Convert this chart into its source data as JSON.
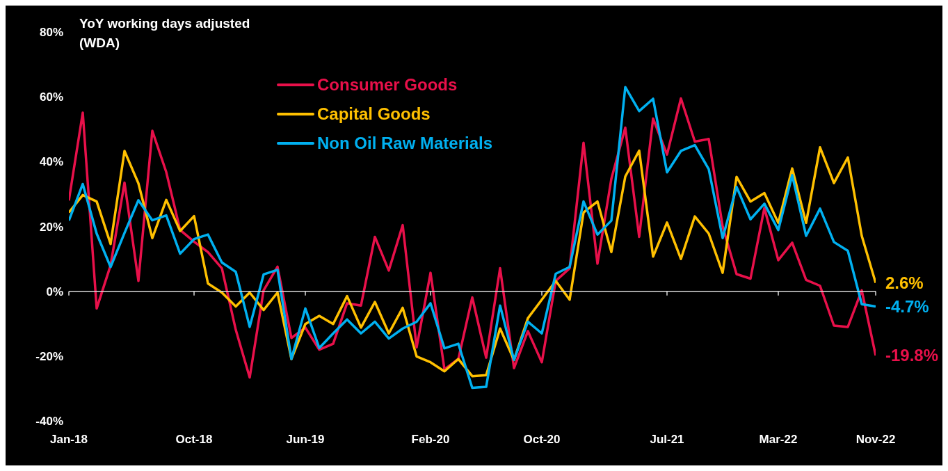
{
  "chart_data": {
    "type": "line",
    "ylabel": "YoY working days adjusted (WDA)",
    "categories": [
      "Jan-18",
      null,
      null,
      null,
      null,
      null,
      null,
      null,
      null,
      "Oct-18",
      null,
      null,
      null,
      null,
      null,
      null,
      null,
      "Jun-19",
      null,
      null,
      null,
      null,
      null,
      null,
      null,
      null,
      "Feb-20",
      null,
      null,
      null,
      null,
      null,
      null,
      null,
      "Oct-20",
      null,
      null,
      null,
      null,
      null,
      null,
      null,
      null,
      "Jul-21",
      null,
      null,
      null,
      null,
      null,
      null,
      null,
      "Mar-22",
      null,
      null,
      null,
      null,
      null,
      null,
      "Nov-22"
    ],
    "ylim": [
      -40,
      80
    ],
    "yticks": [
      {
        "value": -40,
        "label": "-40%"
      },
      {
        "value": -20,
        "label": "-20%"
      },
      {
        "value": 0,
        "label": "0%"
      },
      {
        "value": 20,
        "label": "20%"
      },
      {
        "value": 40,
        "label": "40%"
      },
      {
        "value": 60,
        "label": "60%"
      },
      {
        "value": 80,
        "label": "80%"
      }
    ],
    "legend": "top",
    "marker": "none",
    "line_style": "solid",
    "series": [
      {
        "name": "Consumer Goods",
        "color": "#e8104a",
        "values": [
          28,
          55.1,
          -5.3,
          8,
          33.5,
          3.2,
          49.5,
          36.8,
          18.9,
          15.3,
          12.1,
          7.1,
          -11.9,
          -26.6,
          0.3,
          7.6,
          -14.4,
          -11.2,
          -18,
          -16.2,
          -3.7,
          -4.4,
          16.8,
          6.4,
          20.4,
          -17.3,
          5.7,
          -24.1,
          -20.9,
          -1.9,
          -20.5,
          7.1,
          -23.7,
          -12.3,
          -21.9,
          3.2,
          7.1,
          45.8,
          8.5,
          34.7,
          50.5,
          16.8,
          53.3,
          42.2,
          59.5,
          46.2,
          47,
          20,
          5.3,
          3.9,
          25.7,
          9.6,
          15,
          3.5,
          1.7,
          -10.6,
          -11,
          0.3,
          -19.8
        ],
        "value_labels": [
          null,
          null,
          null,
          null,
          null,
          null,
          null,
          null,
          null,
          null,
          null,
          null,
          null,
          null,
          null,
          null,
          null,
          null,
          null,
          null,
          null,
          null,
          null,
          null,
          null,
          null,
          null,
          null,
          null,
          null,
          null,
          null,
          null,
          null,
          null,
          null,
          null,
          null,
          null,
          null,
          null,
          null,
          null,
          null,
          null,
          null,
          null,
          null,
          null,
          null,
          null,
          null,
          null,
          null,
          null,
          null,
          null,
          null,
          "-19.8%"
        ]
      },
      {
        "name": "Capital Goods",
        "color": "#ffc000",
        "values": [
          24.3,
          29.7,
          27.7,
          14.6,
          43.3,
          33.3,
          16.4,
          28.2,
          18.6,
          23.2,
          2.4,
          -0.4,
          -4.7,
          -0.4,
          -5.8,
          -0.4,
          -20.9,
          -10.1,
          -7.6,
          -10.1,
          -1.5,
          -11.2,
          -3.3,
          -13,
          -5.1,
          -20.1,
          -21.9,
          -24.7,
          -20.9,
          -26.2,
          -25.9,
          -11.5,
          -21.2,
          -8.3,
          -2.6,
          3.2,
          -2.6,
          24.3,
          27.7,
          12.1,
          35.4,
          43.4,
          10.7,
          21.2,
          10,
          23.1,
          17.8,
          5.7,
          35.3,
          27.7,
          30.3,
          21.1,
          37.9,
          21.1,
          44.4,
          33.4,
          41.3,
          17.1,
          2.6
        ],
        "value_labels": [
          null,
          null,
          null,
          null,
          null,
          null,
          null,
          null,
          null,
          null,
          null,
          null,
          null,
          null,
          null,
          null,
          null,
          null,
          null,
          null,
          null,
          null,
          null,
          null,
          null,
          null,
          null,
          null,
          null,
          null,
          null,
          null,
          null,
          null,
          null,
          null,
          null,
          null,
          null,
          null,
          null,
          null,
          null,
          null,
          null,
          null,
          null,
          null,
          null,
          null,
          null,
          null,
          null,
          null,
          null,
          null,
          null,
          null,
          "2.6%"
        ]
      },
      {
        "name": "Non Oil Raw Materials",
        "color": "#00b0f0",
        "values": [
          21.8,
          33.1,
          17.8,
          7.5,
          18,
          28.1,
          21.9,
          23.4,
          11.6,
          16.1,
          17.5,
          8.9,
          6,
          -11,
          5.2,
          6.6,
          -20.9,
          -5.3,
          -17.5,
          -13,
          -8.7,
          -13,
          -9.4,
          -14.6,
          -11.5,
          -9.4,
          -3.7,
          -17.6,
          -16.2,
          -29.8,
          -29.5,
          -4.4,
          -21.2,
          -9.4,
          -13,
          5.4,
          7.5,
          27.7,
          17.5,
          21.8,
          63,
          55.6,
          59.4,
          36.7,
          43.3,
          45.1,
          37.7,
          16.4,
          32.2,
          22.2,
          27,
          18.9,
          35.8,
          17.1,
          25.5,
          15.2,
          12.5,
          -4,
          -4.7
        ],
        "value_labels": [
          null,
          null,
          null,
          null,
          null,
          null,
          null,
          null,
          null,
          null,
          null,
          null,
          null,
          null,
          null,
          null,
          null,
          null,
          null,
          null,
          null,
          null,
          null,
          null,
          null,
          null,
          null,
          null,
          null,
          null,
          null,
          null,
          null,
          null,
          null,
          null,
          null,
          null,
          null,
          null,
          null,
          null,
          null,
          null,
          null,
          null,
          null,
          null,
          null,
          null,
          null,
          null,
          null,
          null,
          null,
          null,
          null,
          null,
          "-4.7%"
        ]
      }
    ]
  }
}
